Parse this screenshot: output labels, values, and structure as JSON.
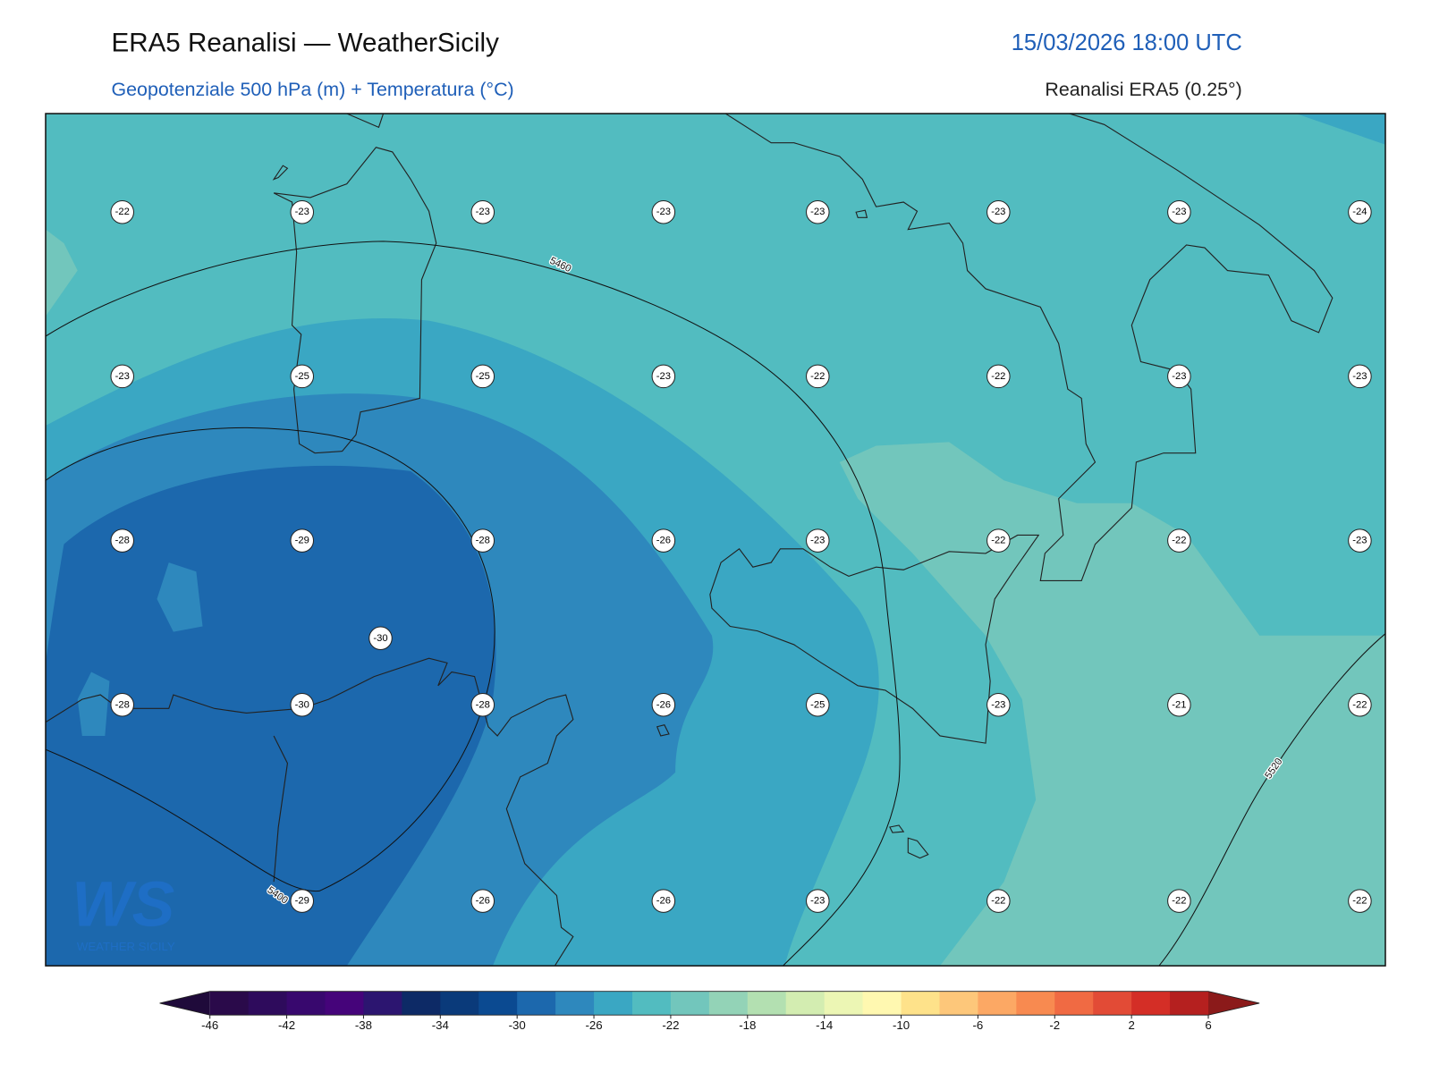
{
  "header": {
    "title": "ERA5 Reanalisi — WeatherSicily",
    "datetime": "15/03/2026 18:00 UTC",
    "subtitle": "Geopotenziale 500 hPa (m) + Temperatura (°C)",
    "source": "Reanalisi ERA5 (0.25°)"
  },
  "map": {
    "temperature_rows": [
      [
        -22,
        -23,
        -23,
        -23,
        -23,
        -23,
        -23,
        -24
      ],
      [
        -23,
        -25,
        -25,
        -23,
        -22,
        -22,
        -23,
        -23
      ],
      [
        -28,
        -29,
        -28,
        -26,
        -23,
        -22,
        -22,
        -23
      ],
      [
        -28,
        -30,
        -28,
        -26,
        -25,
        -23,
        -21,
        -22
      ],
      [
        null,
        -29,
        -26,
        -26,
        -23,
        -22,
        -22,
        -22
      ]
    ],
    "extra_temperature": [
      -30
    ],
    "contour_labels": [
      5460,
      5400,
      5520
    ]
  },
  "colorbar": {
    "lim": [
      -46,
      6
    ],
    "ticks": [
      -46,
      -42,
      -38,
      -34,
      -30,
      -26,
      -22,
      -18,
      -14,
      -10,
      -6,
      -2,
      2,
      6
    ],
    "colors": [
      "#2a0a4a",
      "#2e0b5c",
      "#38086e",
      "#45047a",
      "#2c1570",
      "#0d2a66",
      "#0a3a7a",
      "#0b4a91",
      "#1c68ad",
      "#2e88bd",
      "#3aa7c3",
      "#52bcc0",
      "#72c6bc",
      "#93d3b7",
      "#b3e0b1",
      "#d3edb1",
      "#ecf6b4",
      "#fff8b0",
      "#fee28a",
      "#fdc77a",
      "#fca864",
      "#f88a50",
      "#f06a43",
      "#e24b36",
      "#d42e26",
      "#b5201f"
    ],
    "under_color": "#1f0a3a",
    "over_color": "#8b1a1a"
  },
  "logo": {
    "mark": "WS",
    "text": "WEATHER SICILY"
  }
}
